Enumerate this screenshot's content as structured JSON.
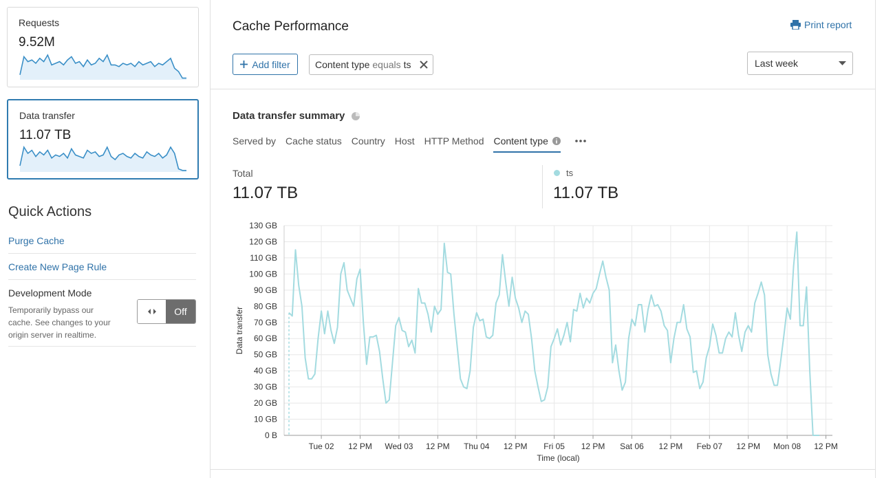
{
  "sidebar": {
    "cards": [
      {
        "label": "Requests",
        "value": "9.52M",
        "spark": [
          15,
          70,
          55,
          60,
          50,
          65,
          55,
          75,
          45,
          50,
          55,
          45,
          60,
          70,
          50,
          55,
          40,
          60,
          45,
          50,
          65,
          55,
          75,
          45,
          45,
          40,
          50,
          45,
          50,
          40,
          55,
          45,
          50,
          55,
          40,
          50,
          45,
          55,
          65,
          35,
          25,
          5,
          5
        ]
      },
      {
        "label": "Data transfer",
        "value": "11.07 TB",
        "spark": [
          20,
          80,
          60,
          70,
          50,
          65,
          55,
          70,
          45,
          55,
          50,
          60,
          45,
          75,
          55,
          50,
          45,
          70,
          60,
          65,
          50,
          55,
          80,
          50,
          40,
          55,
          60,
          50,
          45,
          60,
          50,
          45,
          65,
          55,
          50,
          60,
          45,
          55,
          80,
          60,
          10,
          5,
          5
        ]
      }
    ],
    "quick_actions": {
      "title": "Quick Actions",
      "links": [
        "Purge Cache",
        "Create New Page Rule"
      ],
      "dev_mode": {
        "title": "Development Mode",
        "description": "Temporarily bypass our cache. See changes to your origin server in realtime.",
        "toggle": "Off"
      }
    }
  },
  "header": {
    "title": "Cache Performance",
    "print": "Print report",
    "add_filter": "Add filter",
    "filter": {
      "field": "Content type",
      "operator": "equals",
      "value": "ts"
    },
    "range": "Last week"
  },
  "summary": {
    "title": "Data transfer summary",
    "tabs": [
      "Served by",
      "Cache status",
      "Country",
      "Host",
      "HTTP Method",
      "Content type"
    ],
    "active_tab": 5,
    "total_label": "Total",
    "total_value": "11.07 TB",
    "series_value": "11.07 TB"
  },
  "chart_data": {
    "type": "line",
    "x_label": "Time (local)",
    "y_label": "Data transfer",
    "x": [
      -10,
      -9,
      -8,
      -7,
      -6,
      -5,
      -4,
      -3,
      -2,
      -1,
      0,
      1,
      2,
      3,
      4,
      5,
      6,
      7,
      8,
      9,
      10,
      11,
      12,
      13,
      14,
      15,
      16,
      17,
      18,
      19,
      20,
      21,
      22,
      23,
      24,
      25,
      26,
      27,
      28,
      29,
      30,
      31,
      32,
      33,
      34,
      35,
      36,
      37,
      38,
      39,
      40,
      41,
      42,
      43,
      44,
      45,
      46,
      47,
      48,
      49,
      50,
      51,
      52,
      53,
      54,
      55,
      56,
      57,
      58,
      59,
      60,
      61,
      62,
      63,
      64,
      65,
      66,
      67,
      68,
      69,
      70,
      71,
      72,
      73,
      74,
      75,
      76,
      77,
      78,
      79,
      80,
      81,
      82,
      83,
      84,
      85,
      86,
      87,
      88,
      89,
      90,
      91,
      92,
      93,
      94,
      95,
      96,
      97,
      98,
      99,
      100,
      101,
      102,
      103,
      104,
      105,
      106,
      107,
      108,
      109,
      110,
      111,
      112,
      113,
      114,
      115,
      116,
      117,
      118,
      119,
      120,
      121,
      122,
      123,
      124,
      125,
      126,
      127,
      128,
      129,
      130,
      131,
      132,
      133,
      134,
      135,
      136,
      137,
      138,
      139,
      140,
      141,
      142,
      143,
      144,
      145,
      146,
      147,
      148,
      149,
      150,
      151,
      152,
      153,
      154
    ],
    "series": [
      {
        "name": "ts",
        "color": "#a3dbe0",
        "values": [
          76,
          74,
          115,
          93,
          80,
          48,
          35,
          35,
          38,
          60,
          77,
          63,
          77,
          65,
          57,
          67,
          100,
          107,
          90,
          85,
          80,
          97,
          103,
          70,
          44,
          61,
          61,
          62,
          52,
          35,
          20,
          22,
          45,
          68,
          73,
          65,
          64,
          55,
          59,
          51,
          91,
          82,
          82,
          75,
          64,
          80,
          75,
          78,
          119,
          101,
          100,
          75,
          55,
          35,
          30,
          29,
          40,
          67,
          76,
          71,
          72,
          61,
          60,
          62,
          82,
          87,
          112,
          95,
          80,
          98,
          85,
          79,
          70,
          77,
          75,
          60,
          40,
          30,
          21,
          22,
          30,
          55,
          60,
          66,
          56,
          62,
          70,
          58,
          78,
          77,
          88,
          79,
          85,
          82,
          88,
          91,
          100,
          108,
          98,
          90,
          45,
          56,
          40,
          28,
          33,
          60,
          72,
          68,
          81,
          81,
          64,
          78,
          87,
          80,
          81,
          77,
          68,
          65,
          45,
          60,
          70,
          70,
          81,
          66,
          61,
          39,
          40,
          29,
          33,
          48,
          55,
          69,
          62,
          51,
          51,
          60,
          64,
          61,
          76,
          62,
          52,
          64,
          68,
          64,
          82,
          88,
          95,
          87,
          50,
          38,
          31,
          31,
          46,
          62,
          79,
          72,
          105,
          126,
          68,
          68,
          92,
          40,
          0,
          0,
          0
        ]
      }
    ],
    "xlim": [
      -11.5,
      158
    ],
    "xticks": [
      {
        "value": 0,
        "label": "Tue 02"
      },
      {
        "value": 12,
        "label": "12 PM"
      },
      {
        "value": 24,
        "label": "Wed 03"
      },
      {
        "value": 36,
        "label": "12 PM"
      },
      {
        "value": 48,
        "label": "Thu 04"
      },
      {
        "value": 60,
        "label": "12 PM"
      },
      {
        "value": 72,
        "label": "Fri 05"
      },
      {
        "value": 84,
        "label": "12 PM"
      },
      {
        "value": 96,
        "label": "Sat 06"
      },
      {
        "value": 108,
        "label": "12 PM"
      },
      {
        "value": 120,
        "label": "Feb 07"
      },
      {
        "value": 132,
        "label": "12 PM"
      },
      {
        "value": 144,
        "label": "Mon 08"
      },
      {
        "value": 156,
        "label": "12 PM"
      }
    ],
    "ylim": [
      0,
      130
    ],
    "yticks": [
      {
        "value": 0,
        "label": "0 B"
      },
      {
        "value": 10,
        "label": "10 GB"
      },
      {
        "value": 20,
        "label": "20 GB"
      },
      {
        "value": 30,
        "label": "30 GB"
      },
      {
        "value": 40,
        "label": "40 GB"
      },
      {
        "value": 50,
        "label": "50 GB"
      },
      {
        "value": 60,
        "label": "60 GB"
      },
      {
        "value": 70,
        "label": "70 GB"
      },
      {
        "value": 80,
        "label": "80 GB"
      },
      {
        "value": 90,
        "label": "90 GB"
      },
      {
        "value": 100,
        "label": "100 GB"
      },
      {
        "value": 110,
        "label": "110 GB"
      },
      {
        "value": 120,
        "label": "120 GB"
      },
      {
        "value": 130,
        "label": "130 GB"
      }
    ],
    "grid": true
  }
}
